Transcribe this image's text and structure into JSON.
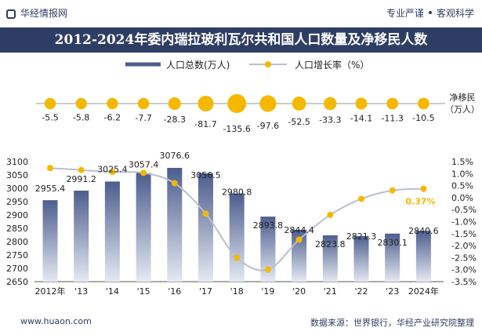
{
  "header": {
    "brand": "华经情报网",
    "slogan_left": "专业严谨",
    "slogan_right": "客观科学"
  },
  "title": "2012-2024年委内瑞拉玻利瓦尔共和国人口数量及净移民人数",
  "footer": {
    "website": "www.huaon.com",
    "source": "数据来源：世界银行，华经产业研究院整理"
  },
  "colors": {
    "navy": "#2e3d63",
    "bar_top": "#4c5e8e",
    "bar_bottom": "#e5e9f2",
    "gold": "#f5b800",
    "highlight_label": "#f5b800",
    "line": "#b9c0cc"
  },
  "chart_data": [
    {
      "type": "scatter",
      "series": [
        {
          "name": "净移民（万人）",
          "values": [
            -5.5,
            -5.8,
            -6.2,
            -7.7,
            -28.3,
            -81.7,
            -135.6,
            -97.6,
            -52.5,
            -33.3,
            -14.1,
            -11.3,
            -10.5
          ]
        }
      ],
      "categories": [
        "2012年",
        "'13",
        "'14",
        "'15",
        "'16",
        "'17",
        "'18",
        "'19",
        "'20",
        "'21",
        "'22",
        "'23",
        "2024年"
      ],
      "ylabel": "净移民\n（万人）"
    },
    {
      "type": "bar",
      "categories": [
        "2012年",
        "'13",
        "'14",
        "'15",
        "'16",
        "'17",
        "'18",
        "'19",
        "'20",
        "'21",
        "'22",
        "'23",
        "2024年"
      ],
      "series": [
        {
          "name": "人口总数(万人)",
          "values": [
            2955.4,
            2991.2,
            3025.4,
            3057.4,
            3076.6,
            3056.5,
            2980.8,
            2893.8,
            2844.4,
            2823.8,
            2821.3,
            2830.1,
            2840.6
          ]
        },
        {
          "name": "人口增长率（%）",
          "values": [
            1.23,
            1.15,
            1.07,
            1.03,
            0.6,
            -0.67,
            -2.5,
            -3.0,
            -1.75,
            -0.72,
            -0.05,
            0.3,
            0.37
          ]
        }
      ],
      "highlight_label": "0.37%",
      "y_left": {
        "lim": [
          2650,
          3100
        ],
        "ticks": [
          2650,
          2700,
          2750,
          2800,
          2850,
          2900,
          2950,
          3000,
          3050,
          3100
        ]
      },
      "y_right": {
        "lim": [
          -3.5,
          1.5
        ],
        "ticks": [
          "1.5%",
          "1.0%",
          "0.5%",
          "0.0%",
          "-0.5%",
          "-1.0%",
          "-1.5%",
          "-2.0%",
          "-2.5%",
          "-3.0%",
          "-3.5%"
        ]
      },
      "legend": "top-center"
    }
  ]
}
